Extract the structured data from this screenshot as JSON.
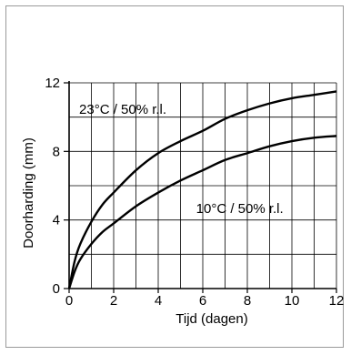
{
  "chart_data": {
    "type": "line",
    "title": "",
    "xlabel": "Tijd (dagen)",
    "ylabel": "Doorharding (mm)",
    "xlim": [
      0,
      12
    ],
    "ylim": [
      0,
      12
    ],
    "x_ticks": [
      "0",
      "2",
      "4",
      "6",
      "8",
      "10",
      "12"
    ],
    "y_ticks": [
      "0",
      "4",
      "8",
      "12"
    ],
    "grid": true,
    "series": [
      {
        "name": "23°C / 50% r.l.",
        "x": [
          0,
          0.25,
          0.5,
          1,
          1.5,
          2,
          3,
          4,
          5,
          6,
          7,
          8,
          9,
          10,
          11,
          12
        ],
        "y": [
          0,
          1.6,
          2.6,
          3.9,
          4.9,
          5.6,
          6.9,
          7.9,
          8.6,
          9.2,
          9.9,
          10.4,
          10.8,
          11.1,
          11.3,
          11.5
        ]
      },
      {
        "name": "10°C / 50% r.l.",
        "x": [
          0,
          0.25,
          0.5,
          1,
          1.5,
          2,
          3,
          4,
          5,
          6,
          7,
          8,
          9,
          10,
          11,
          12
        ],
        "y": [
          0,
          1.0,
          1.7,
          2.6,
          3.3,
          3.8,
          4.8,
          5.6,
          6.3,
          6.9,
          7.5,
          7.9,
          8.3,
          8.6,
          8.8,
          8.9
        ]
      }
    ],
    "annotations": [
      {
        "text": "23°C / 50% r.l.",
        "series": 0
      },
      {
        "text": "10°C / 50% r.l.",
        "series": 1
      }
    ]
  }
}
